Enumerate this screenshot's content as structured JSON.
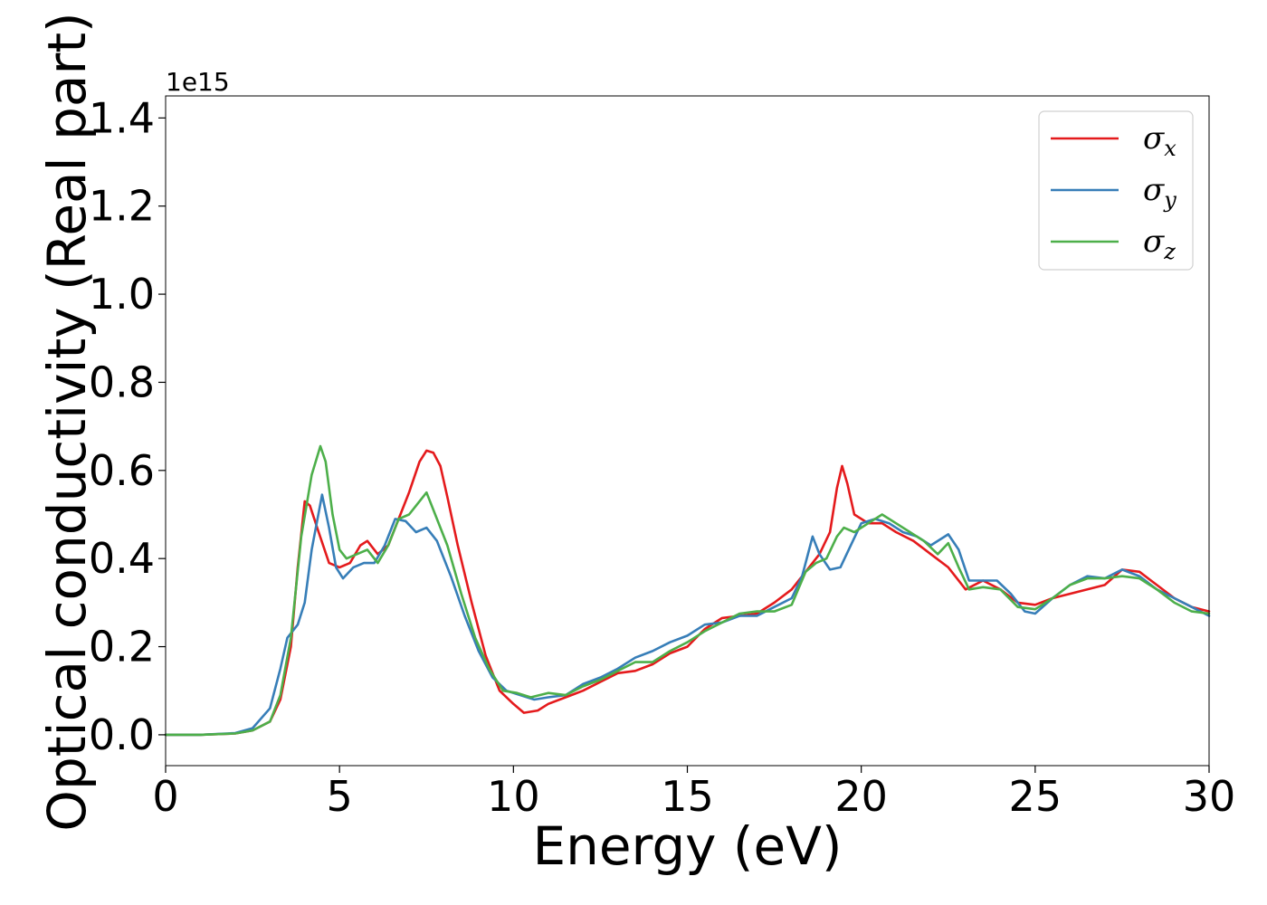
{
  "chart_data": {
    "type": "line",
    "title": "",
    "xlabel": "Energy (eV)",
    "ylabel": "Optical conductivity (Real part)",
    "y_offset_label": "1e15",
    "xlim": [
      0,
      30
    ],
    "ylim": [
      -0.07,
      1.45
    ],
    "xticks": [
      0,
      5,
      10,
      15,
      20,
      25,
      30
    ],
    "xtick_labels": [
      "0",
      "5",
      "10",
      "15",
      "20",
      "25",
      "30"
    ],
    "yticks": [
      0.0,
      0.2,
      0.4,
      0.6,
      0.8,
      1.0,
      1.2,
      1.4
    ],
    "ytick_labels": [
      "0.0",
      "0.2",
      "0.4",
      "0.6",
      "0.8",
      "1.0",
      "1.2",
      "1.4"
    ],
    "grid": false,
    "legend_position": "top-right",
    "series": [
      {
        "name": "σx",
        "symbol": "σ",
        "subscript": "x",
        "color": "#e41a1c",
        "points": [
          [
            0,
            0
          ],
          [
            1,
            0
          ],
          [
            2,
            0.003
          ],
          [
            2.5,
            0.01
          ],
          [
            3,
            0.03
          ],
          [
            3.3,
            0.08
          ],
          [
            3.6,
            0.2
          ],
          [
            3.8,
            0.38
          ],
          [
            4.0,
            0.53
          ],
          [
            4.15,
            0.52
          ],
          [
            4.4,
            0.46
          ],
          [
            4.7,
            0.39
          ],
          [
            5.0,
            0.38
          ],
          [
            5.3,
            0.39
          ],
          [
            5.6,
            0.43
          ],
          [
            5.8,
            0.44
          ],
          [
            6.1,
            0.41
          ],
          [
            6.4,
            0.43
          ],
          [
            6.7,
            0.49
          ],
          [
            7.0,
            0.55
          ],
          [
            7.3,
            0.62
          ],
          [
            7.5,
            0.645
          ],
          [
            7.7,
            0.64
          ],
          [
            7.9,
            0.61
          ],
          [
            8.1,
            0.54
          ],
          [
            8.4,
            0.43
          ],
          [
            8.8,
            0.3
          ],
          [
            9.2,
            0.18
          ],
          [
            9.6,
            0.1
          ],
          [
            10.0,
            0.07
          ],
          [
            10.3,
            0.05
          ],
          [
            10.7,
            0.055
          ],
          [
            11.0,
            0.07
          ],
          [
            11.5,
            0.085
          ],
          [
            12.0,
            0.1
          ],
          [
            12.5,
            0.12
          ],
          [
            13.0,
            0.14
          ],
          [
            13.5,
            0.145
          ],
          [
            14.0,
            0.16
          ],
          [
            14.5,
            0.185
          ],
          [
            15.0,
            0.2
          ],
          [
            15.5,
            0.24
          ],
          [
            16.0,
            0.265
          ],
          [
            16.5,
            0.27
          ],
          [
            17.0,
            0.275
          ],
          [
            17.5,
            0.3
          ],
          [
            18.0,
            0.33
          ],
          [
            18.4,
            0.37
          ],
          [
            18.8,
            0.41
          ],
          [
            19.1,
            0.46
          ],
          [
            19.3,
            0.56
          ],
          [
            19.45,
            0.61
          ],
          [
            19.6,
            0.57
          ],
          [
            19.8,
            0.5
          ],
          [
            20.2,
            0.48
          ],
          [
            20.6,
            0.48
          ],
          [
            21.0,
            0.46
          ],
          [
            21.5,
            0.44
          ],
          [
            22.0,
            0.41
          ],
          [
            22.5,
            0.38
          ],
          [
            23.0,
            0.33
          ],
          [
            23.5,
            0.35
          ],
          [
            24.0,
            0.33
          ],
          [
            24.5,
            0.3
          ],
          [
            25.0,
            0.295
          ],
          [
            25.5,
            0.31
          ],
          [
            26.0,
            0.32
          ],
          [
            26.5,
            0.33
          ],
          [
            27.0,
            0.34
          ],
          [
            27.5,
            0.375
          ],
          [
            28.0,
            0.37
          ],
          [
            28.5,
            0.34
          ],
          [
            29.0,
            0.31
          ],
          [
            29.5,
            0.29
          ],
          [
            30.0,
            0.28
          ]
        ]
      },
      {
        "name": "σy",
        "symbol": "σ",
        "subscript": "y",
        "color": "#377eb8",
        "points": [
          [
            0,
            0
          ],
          [
            1,
            0
          ],
          [
            2,
            0.004
          ],
          [
            2.5,
            0.015
          ],
          [
            3,
            0.06
          ],
          [
            3.3,
            0.15
          ],
          [
            3.5,
            0.22
          ],
          [
            3.8,
            0.25
          ],
          [
            4.0,
            0.3
          ],
          [
            4.2,
            0.42
          ],
          [
            4.5,
            0.545
          ],
          [
            4.7,
            0.47
          ],
          [
            4.9,
            0.38
          ],
          [
            5.1,
            0.355
          ],
          [
            5.4,
            0.38
          ],
          [
            5.7,
            0.39
          ],
          [
            6.0,
            0.39
          ],
          [
            6.3,
            0.43
          ],
          [
            6.6,
            0.49
          ],
          [
            6.9,
            0.485
          ],
          [
            7.2,
            0.46
          ],
          [
            7.5,
            0.47
          ],
          [
            7.8,
            0.44
          ],
          [
            8.2,
            0.36
          ],
          [
            8.6,
            0.27
          ],
          [
            9.0,
            0.19
          ],
          [
            9.4,
            0.13
          ],
          [
            9.8,
            0.1
          ],
          [
            10.2,
            0.09
          ],
          [
            10.6,
            0.08
          ],
          [
            11.0,
            0.085
          ],
          [
            11.5,
            0.09
          ],
          [
            12.0,
            0.115
          ],
          [
            12.5,
            0.13
          ],
          [
            13.0,
            0.15
          ],
          [
            13.5,
            0.175
          ],
          [
            14.0,
            0.19
          ],
          [
            14.5,
            0.21
          ],
          [
            15.0,
            0.225
          ],
          [
            15.5,
            0.25
          ],
          [
            16.0,
            0.255
          ],
          [
            16.5,
            0.27
          ],
          [
            17.0,
            0.27
          ],
          [
            17.5,
            0.29
          ],
          [
            18.0,
            0.31
          ],
          [
            18.3,
            0.36
          ],
          [
            18.6,
            0.45
          ],
          [
            18.8,
            0.41
          ],
          [
            19.1,
            0.375
          ],
          [
            19.4,
            0.38
          ],
          [
            19.7,
            0.43
          ],
          [
            20.0,
            0.48
          ],
          [
            20.4,
            0.49
          ],
          [
            20.8,
            0.48
          ],
          [
            21.2,
            0.46
          ],
          [
            21.6,
            0.45
          ],
          [
            22.0,
            0.43
          ],
          [
            22.5,
            0.455
          ],
          [
            22.8,
            0.42
          ],
          [
            23.1,
            0.35
          ],
          [
            23.5,
            0.35
          ],
          [
            23.9,
            0.35
          ],
          [
            24.3,
            0.32
          ],
          [
            24.7,
            0.28
          ],
          [
            25.0,
            0.275
          ],
          [
            25.5,
            0.31
          ],
          [
            26.0,
            0.34
          ],
          [
            26.5,
            0.36
          ],
          [
            27.0,
            0.355
          ],
          [
            27.5,
            0.375
          ],
          [
            28.0,
            0.36
          ],
          [
            28.5,
            0.33
          ],
          [
            29.0,
            0.31
          ],
          [
            29.5,
            0.29
          ],
          [
            30.0,
            0.27
          ]
        ]
      },
      {
        "name": "σz",
        "symbol": "σ",
        "subscript": "z",
        "color": "#4daf4a",
        "points": [
          [
            0,
            0
          ],
          [
            1,
            0
          ],
          [
            2,
            0.003
          ],
          [
            2.5,
            0.01
          ],
          [
            3,
            0.03
          ],
          [
            3.3,
            0.09
          ],
          [
            3.6,
            0.22
          ],
          [
            3.9,
            0.45
          ],
          [
            4.2,
            0.59
          ],
          [
            4.45,
            0.655
          ],
          [
            4.6,
            0.62
          ],
          [
            4.8,
            0.5
          ],
          [
            5.0,
            0.42
          ],
          [
            5.2,
            0.4
          ],
          [
            5.5,
            0.41
          ],
          [
            5.8,
            0.42
          ],
          [
            6.1,
            0.39
          ],
          [
            6.4,
            0.43
          ],
          [
            6.7,
            0.49
          ],
          [
            7.0,
            0.5
          ],
          [
            7.2,
            0.52
          ],
          [
            7.5,
            0.55
          ],
          [
            7.8,
            0.49
          ],
          [
            8.1,
            0.43
          ],
          [
            8.5,
            0.32
          ],
          [
            8.9,
            0.22
          ],
          [
            9.3,
            0.15
          ],
          [
            9.7,
            0.1
          ],
          [
            10.1,
            0.095
          ],
          [
            10.5,
            0.085
          ],
          [
            11.0,
            0.095
          ],
          [
            11.5,
            0.09
          ],
          [
            12.0,
            0.11
          ],
          [
            12.5,
            0.125
          ],
          [
            13.0,
            0.145
          ],
          [
            13.5,
            0.165
          ],
          [
            14.0,
            0.165
          ],
          [
            14.5,
            0.19
          ],
          [
            15.0,
            0.21
          ],
          [
            15.5,
            0.235
          ],
          [
            16.0,
            0.255
          ],
          [
            16.5,
            0.275
          ],
          [
            17.0,
            0.28
          ],
          [
            17.5,
            0.28
          ],
          [
            18.0,
            0.295
          ],
          [
            18.4,
            0.37
          ],
          [
            18.7,
            0.39
          ],
          [
            19.0,
            0.4
          ],
          [
            19.3,
            0.45
          ],
          [
            19.5,
            0.47
          ],
          [
            19.8,
            0.46
          ],
          [
            20.2,
            0.48
          ],
          [
            20.6,
            0.5
          ],
          [
            21.0,
            0.48
          ],
          [
            21.4,
            0.46
          ],
          [
            21.8,
            0.44
          ],
          [
            22.2,
            0.41
          ],
          [
            22.5,
            0.435
          ],
          [
            22.8,
            0.38
          ],
          [
            23.1,
            0.33
          ],
          [
            23.5,
            0.335
          ],
          [
            24.0,
            0.33
          ],
          [
            24.5,
            0.29
          ],
          [
            25.0,
            0.285
          ],
          [
            25.5,
            0.31
          ],
          [
            26.0,
            0.34
          ],
          [
            26.5,
            0.355
          ],
          [
            27.0,
            0.355
          ],
          [
            27.5,
            0.36
          ],
          [
            28.0,
            0.355
          ],
          [
            28.5,
            0.33
          ],
          [
            29.0,
            0.3
          ],
          [
            29.5,
            0.28
          ],
          [
            30.0,
            0.275
          ]
        ]
      }
    ]
  }
}
